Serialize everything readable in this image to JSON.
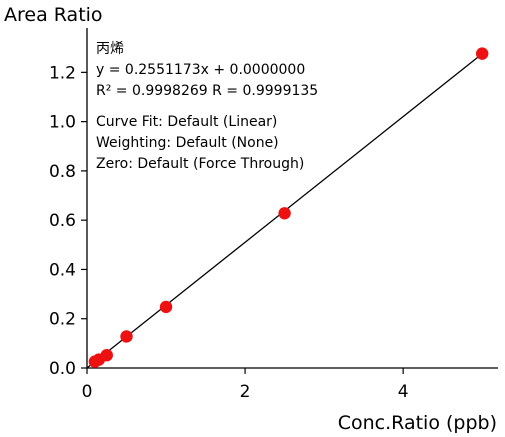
{
  "chart_data": {
    "type": "scatter",
    "title": "",
    "xlabel": "Conc.Ratio (ppb)",
    "ylabel": "Area Ratio",
    "xlim": [
      0,
      5.2
    ],
    "ylim": [
      0,
      1.38
    ],
    "x_ticks": [
      "0",
      "2",
      "4"
    ],
    "x_tick_values": [
      0,
      2,
      4
    ],
    "y_ticks": [
      "0.0",
      "0.2",
      "0.4",
      "0.6",
      "0.8",
      "1.0",
      "1.2"
    ],
    "y_tick_values": [
      0.0,
      0.2,
      0.4,
      0.6,
      0.8,
      1.0,
      1.2
    ],
    "grid": false,
    "points": [
      {
        "x": 0.1,
        "y": 0.026
      },
      {
        "x": 0.15,
        "y": 0.034
      },
      {
        "x": 0.25,
        "y": 0.052
      },
      {
        "x": 0.5,
        "y": 0.128
      },
      {
        "x": 1.0,
        "y": 0.248
      },
      {
        "x": 2.5,
        "y": 0.628
      },
      {
        "x": 5.0,
        "y": 1.276
      }
    ],
    "fit_line": {
      "slope": 0.2551173,
      "intercept": 0.0
    },
    "point_color": "#ee1111",
    "line_color": "#000000",
    "annotations": [
      "丙烯",
      "y = 0.2551173x + 0.0000000",
      "R² = 0.9998269    R = 0.9999135",
      "Curve Fit: Default (Linear)",
      "Weighting: Default (None)",
      "Zero: Default (Force Through)"
    ]
  }
}
